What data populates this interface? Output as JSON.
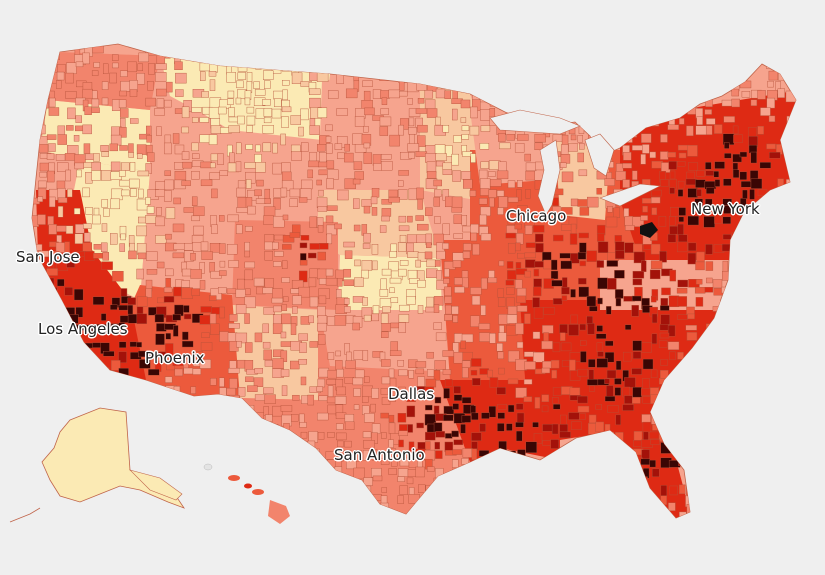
{
  "map": {
    "palette": {
      "lightest": "#fbeab4",
      "light": "#f8c8a0",
      "light_salmon": "#f6a48e",
      "salmon": "#f2846c",
      "orange_red": "#ec5a3c",
      "red": "#de2a14",
      "dark_red": "#a3120a",
      "darkest": "#3a0604",
      "black": "#111111",
      "border": "#c0644a",
      "background": "#efefef"
    },
    "cities": [
      {
        "id": "san-jose",
        "name": "San Jose"
      },
      {
        "id": "los-angeles",
        "name": "Los Angeles"
      },
      {
        "id": "phoenix",
        "name": "Phoenix"
      },
      {
        "id": "dallas",
        "name": "Dallas"
      },
      {
        "id": "san-antonio",
        "name": "San Antonio"
      },
      {
        "id": "chicago",
        "name": "Chicago"
      },
      {
        "id": "new-york",
        "name": "New York"
      }
    ]
  }
}
